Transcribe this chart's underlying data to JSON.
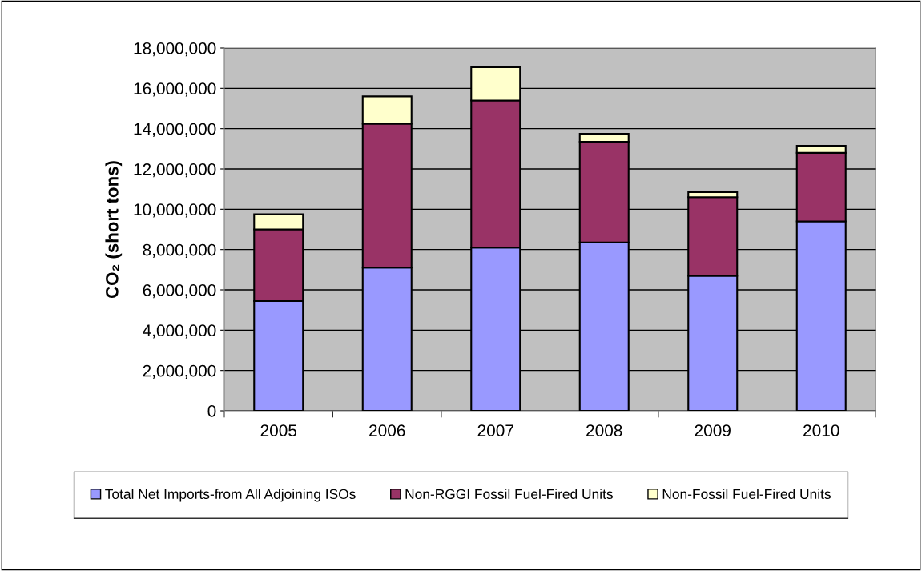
{
  "chart_data": {
    "type": "bar",
    "stacked": true,
    "ylabel": "CO₂ (short tons)",
    "categories": [
      "2005",
      "2006",
      "2007",
      "2008",
      "2009",
      "2010"
    ],
    "series": [
      {
        "name": "Total Net Imports-from All Adjoining ISOs",
        "color": "#9999ff",
        "values": [
          5450000,
          7100000,
          8100000,
          8350000,
          6700000,
          9400000
        ]
      },
      {
        "name": "Non-RGGI Fossil Fuel-Fired Units",
        "color": "#993366",
        "values": [
          3550000,
          7150000,
          7300000,
          5000000,
          3900000,
          3400000
        ]
      },
      {
        "name": "Non-Fossil Fuel-Fired Units",
        "color": "#ffffcc",
        "values": [
          750000,
          1350000,
          1650000,
          400000,
          250000,
          350000
        ]
      }
    ],
    "ylim": [
      0,
      18000000
    ],
    "yticks": [
      {
        "value": 0,
        "label": "0"
      },
      {
        "value": 2000000,
        "label": "2,000,000"
      },
      {
        "value": 4000000,
        "label": "4,000,000"
      },
      {
        "value": 6000000,
        "label": "6,000,000"
      },
      {
        "value": 8000000,
        "label": "8,000,000"
      },
      {
        "value": 10000000,
        "label": "10,000,000"
      },
      {
        "value": 12000000,
        "label": "12,000,000"
      },
      {
        "value": 14000000,
        "label": "14,000,000"
      },
      {
        "value": 16000000,
        "label": "16,000,000"
      },
      {
        "value": 18000000,
        "label": "18,000,000"
      }
    ],
    "grid": "y",
    "legend": "bottom"
  }
}
